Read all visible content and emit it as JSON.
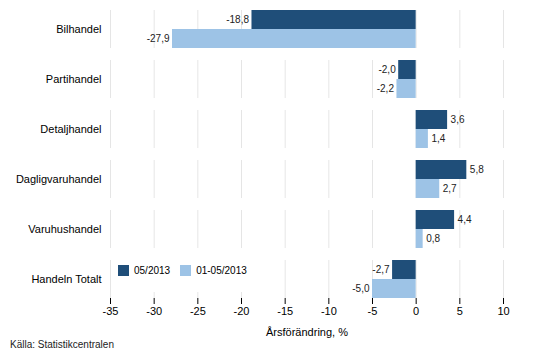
{
  "chart_data": {
    "type": "bar",
    "orientation": "horizontal",
    "categories": [
      "Handeln Totalt",
      "Varuhushandel",
      "Dagligvaruhandel",
      "Detaljhandel",
      "Partihandel",
      "Bilhandel"
    ],
    "series": [
      {
        "name": "05/2013",
        "color": "#1F4E79",
        "values": [
          -2.7,
          4.4,
          5.8,
          3.6,
          -2.0,
          -18.8
        ],
        "value_labels": [
          "-2,7",
          "4,4",
          "5,8",
          "3,6",
          "-2,0",
          "-18,8"
        ]
      },
      {
        "name": "01-05/2013",
        "color": "#9DC3E6",
        "values": [
          -5.0,
          0.8,
          2.7,
          1.4,
          -2.2,
          -27.9
        ],
        "value_labels": [
          "-5,0",
          "0,8",
          "2,7",
          "1,4",
          "-2,2",
          "-27,9"
        ]
      }
    ],
    "xlabel": "Årsförändring, %",
    "xlim": [
      -35,
      10
    ],
    "xticks": [
      -35,
      -30,
      -25,
      -20,
      -15,
      -10,
      -5,
      0,
      5,
      10
    ],
    "grid": true,
    "legend": "lower left",
    "data_labels": true,
    "source": "Källa: Statistikcentralen"
  }
}
